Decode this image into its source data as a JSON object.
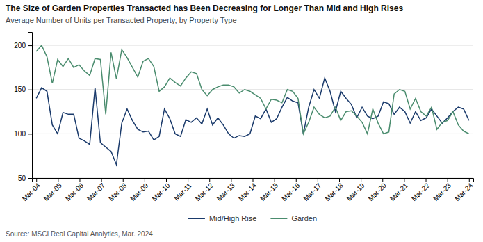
{
  "chart_data": {
    "type": "line",
    "title": "The Size of Garden Properties Transacted has Been Decreasing for Longer Than Mid and High Rises",
    "subtitle": "Average Number of Units per Transacted Property, by Property Type",
    "annotations": [
      "Source: MSCI Real Capital Analytics, Mar. 2024"
    ],
    "x": [
      0,
      0.2469,
      0.4938,
      0.7407,
      0.9877,
      1.2346,
      1.4815,
      1.7284,
      1.9753,
      2.2222,
      2.4691,
      2.716,
      2.963,
      3.2099,
      3.4568,
      3.7037,
      3.9506,
      4.1975,
      4.4444,
      4.6914,
      4.9383,
      5.1852,
      5.4321,
      5.679,
      5.9259,
      6.1728,
      6.4198,
      6.6667,
      6.9136,
      7.1605,
      7.4074,
      7.6543,
      7.9012,
      8.1481,
      8.3951,
      8.642,
      8.8889,
      9.1358,
      9.3827,
      9.6296,
      9.8765,
      10.1235,
      10.3704,
      10.6173,
      10.8642,
      11.1111,
      11.358,
      11.6049,
      11.8519,
      12.0988,
      12.3457,
      12.5926,
      12.8395,
      13.0864,
      13.3333,
      13.5802,
      13.8272,
      14.0741,
      14.321,
      14.5679,
      14.8148,
      15.0617,
      15.3086,
      15.5556,
      15.8025,
      16.0494,
      16.2963,
      16.5432,
      16.7901,
      17.037,
      17.284,
      17.5309,
      17.7778,
      18.0247,
      18.2716,
      18.5185,
      18.7654,
      19.0123,
      19.2593,
      19.5062,
      19.7531,
      20
    ],
    "series": [
      {
        "name": "Mid/High Rise",
        "color": "#1a3a6b",
        "values": [
          140,
          152,
          148,
          110,
          100,
          124,
          122,
          122,
          95,
          92,
          88,
          152,
          90,
          85,
          80,
          65,
          112,
          128,
          115,
          105,
          102,
          103,
          93,
          97,
          128,
          117,
          100,
          97,
          116,
          113,
          118,
          111,
          128,
          110,
          118,
          110,
          100,
          95,
          98,
          97,
          100,
          120,
          117,
          128,
          113,
          117,
          130,
          141,
          137,
          135,
          100,
          130,
          150,
          140,
          163,
          148,
          125,
          148,
          140,
          133,
          118,
          130,
          120,
          117,
          120,
          136,
          134,
          122,
          130,
          125,
          112,
          125,
          115,
          118,
          128,
          120,
          112,
          118,
          125,
          130,
          128,
          115
        ]
      },
      {
        "name": "Garden",
        "color": "#4a8c6e",
        "values": [
          193,
          200,
          187,
          157,
          184,
          176,
          185,
          175,
          178,
          171,
          166,
          185,
          184,
          122,
          192,
          162,
          195,
          186,
          175,
          164,
          182,
          185,
          176,
          148,
          153,
          163,
          158,
          154,
          163,
          170,
          168,
          150,
          143,
          150,
          153,
          155,
          155,
          153,
          146,
          150,
          148,
          144,
          140,
          128,
          139,
          138,
          135,
          150,
          148,
          140,
          100,
          113,
          130,
          122,
          118,
          120,
          130,
          115,
          125,
          126,
          120,
          113,
          100,
          128,
          112,
          100,
          102,
          145,
          150,
          148,
          128,
          140,
          125,
          120,
          130,
          105,
          113,
          115,
          125,
          110,
          103,
          100
        ]
      }
    ],
    "xlim": [
      -0.2,
      20.2
    ],
    "xticks": [
      {
        "value": 0,
        "label": "Mar-04"
      },
      {
        "value": 1,
        "label": "Mar-05"
      },
      {
        "value": 2,
        "label": "Mar-06"
      },
      {
        "value": 3,
        "label": "Mar-07"
      },
      {
        "value": 4,
        "label": "Mar-08"
      },
      {
        "value": 5,
        "label": "Mar-09"
      },
      {
        "value": 6,
        "label": "Mar-10"
      },
      {
        "value": 7,
        "label": "Mar-11"
      },
      {
        "value": 8,
        "label": "Mar-12"
      },
      {
        "value": 9,
        "label": "Mar-13"
      },
      {
        "value": 10,
        "label": "Mar-14"
      },
      {
        "value": 11,
        "label": "Mar-15"
      },
      {
        "value": 12,
        "label": "Mar-16"
      },
      {
        "value": 13,
        "label": "Mar-17"
      },
      {
        "value": 14,
        "label": "Mar-18"
      },
      {
        "value": 15,
        "label": "Mar-19"
      },
      {
        "value": 16,
        "label": "Mar-20"
      },
      {
        "value": 17,
        "label": "Mar-21"
      },
      {
        "value": 18,
        "label": "Mar-22"
      },
      {
        "value": 19,
        "label": "Mar-23"
      },
      {
        "value": 20,
        "label": "Mar-24"
      }
    ],
    "ylim": [
      50,
      215
    ],
    "yticks": [
      50,
      100,
      150,
      200
    ],
    "grid": true,
    "legend": "bottom"
  }
}
